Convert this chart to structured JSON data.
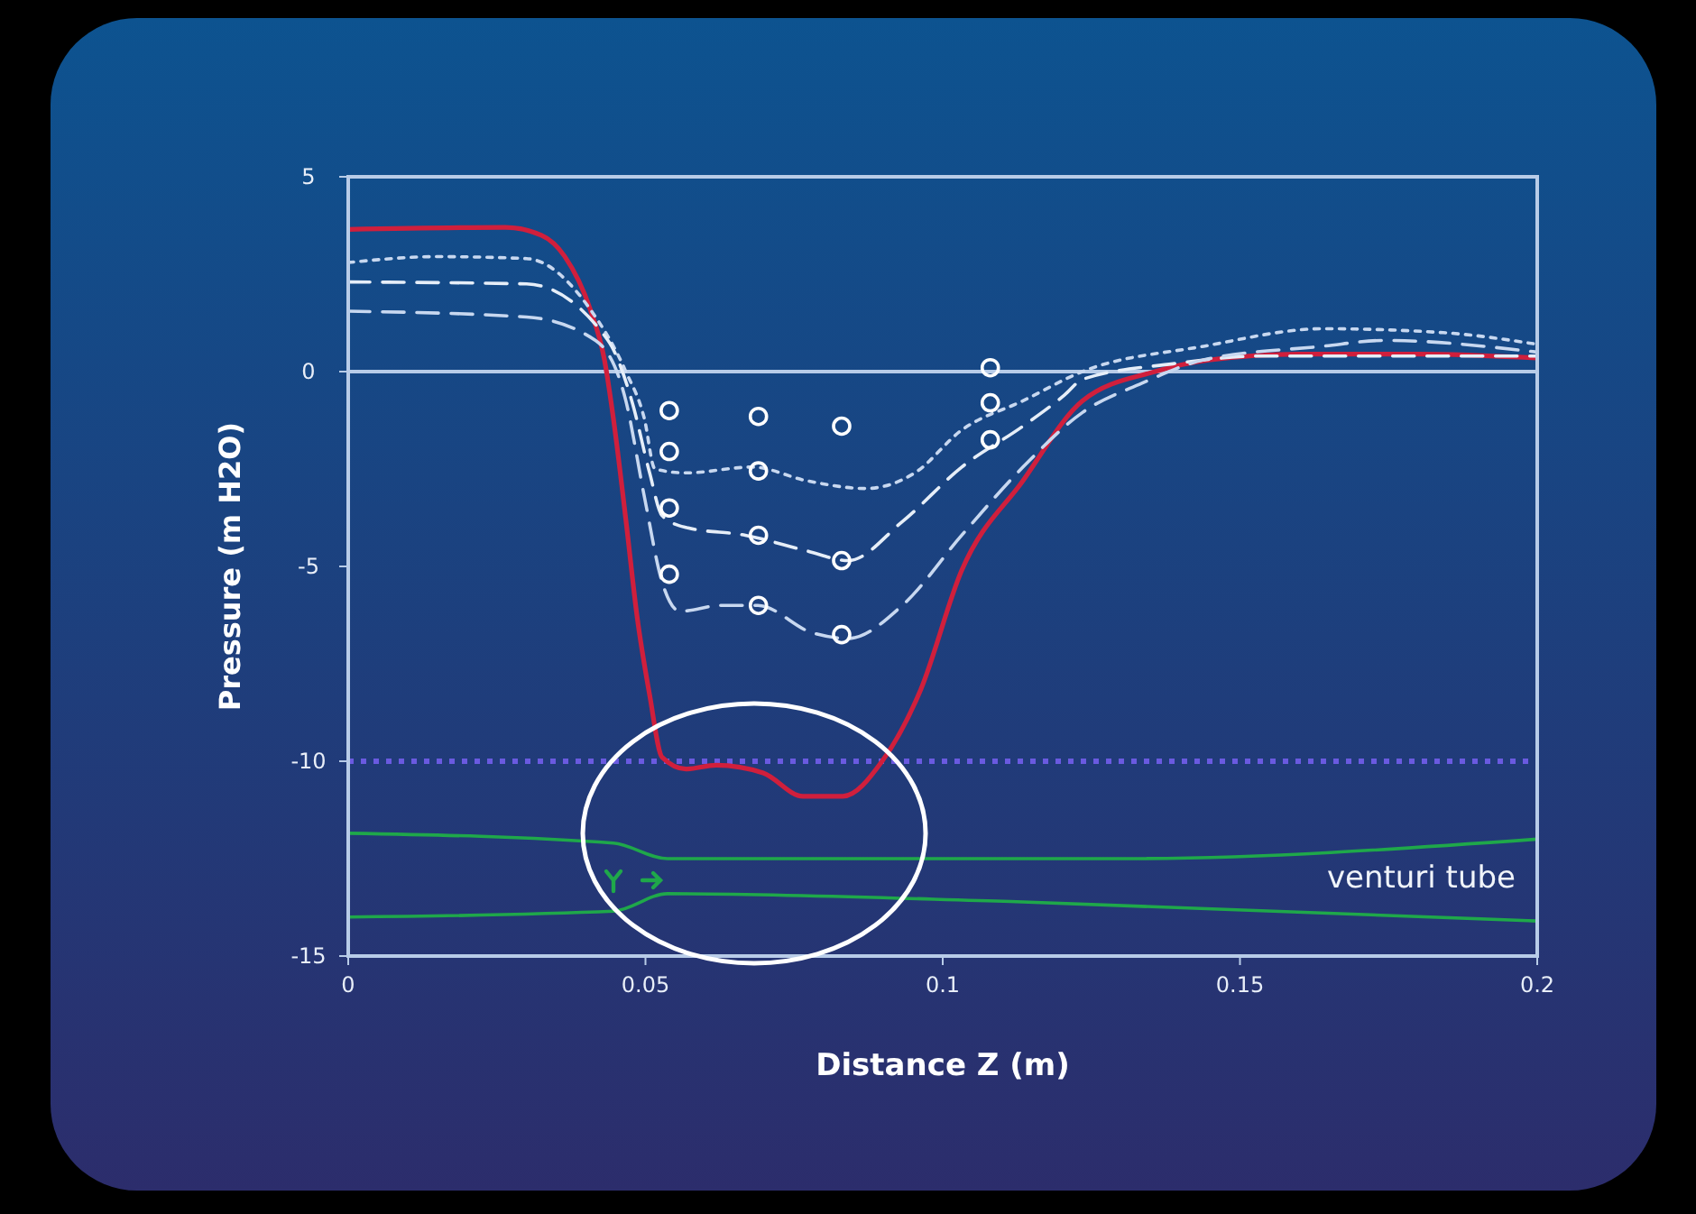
{
  "chart_data": {
    "type": "line",
    "xlabel": "Distance Z (m)",
    "ylabel": "Pressure (m H2O)",
    "xlim": [
      0,
      0.2
    ],
    "xticks": [
      0,
      0.05,
      0.1,
      0.15,
      0.2
    ],
    "ylim": [
      -15,
      5
    ],
    "yticks": [
      5,
      0,
      -5,
      -10,
      -15
    ],
    "grid": false,
    "series": [
      {
        "color": "#d01f3c",
        "line_style": "solid",
        "x": [
          0,
          0.0264,
          0.0325,
          0.0364,
          0.0407,
          0.0431,
          0.0446,
          0.0467,
          0.0486,
          0.0507,
          0.0528,
          0.0568,
          0.0619,
          0.0698,
          0.0765,
          0.0832,
          0.0898,
          0.0962,
          0.1032,
          0.1135,
          0.1235,
          0.1357,
          0.145,
          0.16,
          0.18,
          0.2
        ],
        "values": [
          3.65,
          3.7,
          3.5,
          2.96,
          1.6,
          0.3,
          -1.2,
          -3.8,
          -6.3,
          -8.3,
          -9.9,
          -10.2,
          -10.1,
          -10.3,
          -10.9,
          -10.9,
          -10,
          -8.2,
          -5.1,
          -2.8,
          -0.75,
          0,
          0.3,
          0.45,
          0.45,
          0.35
        ]
      },
      {
        "color": "#c8d8f0",
        "line_style": "dotted",
        "x": [
          0,
          0.015,
          0.03,
          0.0407,
          0.0467,
          0.0498,
          0.0516,
          0.0568,
          0.068,
          0.0771,
          0.0871,
          0.0953,
          0.1032,
          0.1135,
          0.1235,
          0.1439,
          0.1639,
          0.1842,
          0.2
        ],
        "values": [
          2.8,
          2.95,
          2.9,
          1.6,
          0,
          -1.2,
          -2.5,
          -2.6,
          -2.45,
          -2.8,
          -3.0,
          -2.6,
          -1.5,
          -0.75,
          0,
          0.65,
          1.1,
          1.0,
          0.7
        ]
      },
      {
        "color": "#e6eef8",
        "line_style": "dashed",
        "x": [
          0,
          0.03,
          0.0437,
          0.0477,
          0.0507,
          0.0528,
          0.0568,
          0.0668,
          0.0771,
          0.0841,
          0.0932,
          0.1032,
          0.1135,
          0.1205,
          0.1235,
          0.1387,
          0.1539,
          0.1742,
          0.2
        ],
        "values": [
          2.3,
          2.25,
          0.8,
          -0.75,
          -2.6,
          -3.7,
          -4.0,
          -4.2,
          -4.6,
          -4.85,
          -3.85,
          -2.45,
          -1.4,
          -0.6,
          -0.2,
          0.2,
          0.4,
          0.4,
          0.4
        ]
      },
      {
        "color": "#c8d8f0",
        "line_style": "dashed",
        "x": [
          0,
          0.03,
          0.0416,
          0.0467,
          0.0498,
          0.0528,
          0.0558,
          0.0628,
          0.0689,
          0.078,
          0.0841,
          0.0932,
          0.1032,
          0.1135,
          0.1235,
          0.1335,
          0.1439,
          0.1639,
          0.1742,
          0.2
        ],
        "values": [
          1.55,
          1.4,
          0.8,
          -0.75,
          -3.2,
          -5.4,
          -6.15,
          -6.0,
          -6.0,
          -6.7,
          -6.85,
          -6.0,
          -4.2,
          -2.45,
          -1.05,
          -0.3,
          0.3,
          0.65,
          0.8,
          0.5
        ]
      },
      {
        "type": "scatter",
        "color": "#ffffff",
        "marker": "circle",
        "x": [
          0.054,
          0.069,
          0.083,
          0.108,
          0.054,
          0.069,
          0.108,
          0.054,
          0.069,
          0.083,
          0.108,
          0.054,
          0.069,
          0.083
        ],
        "values": [
          -1.0,
          -1.15,
          -1.4,
          0.1,
          -2.05,
          -2.55,
          -0.8,
          -3.5,
          -4.2,
          -4.85,
          -1.75,
          -5.2,
          -6.0,
          -6.75
        ]
      },
      {
        "color": "#1fa84a",
        "line_style": "solid",
        "x": [
          0,
          0.0446,
          0.0537,
          0.1305,
          0.2
        ],
        "values": [
          -11.85,
          -12.1,
          -12.5,
          -12.5,
          -12.0
        ]
      },
      {
        "color": "#1fa84a",
        "line_style": "solid",
        "x": [
          0,
          0.0446,
          0.0537,
          0.1114,
          0.2
        ],
        "values": [
          -14.0,
          -13.85,
          -13.4,
          -13.6,
          -14.1
        ]
      }
    ],
    "ref_lines": [
      {
        "axis": "y",
        "value": 0,
        "color": "#b8cce8",
        "line_style": "solid"
      },
      {
        "axis": "y",
        "value": -10,
        "color": "#6a5ae0",
        "line_style": "dotted"
      }
    ],
    "annotations": [
      "venturi tube"
    ]
  }
}
